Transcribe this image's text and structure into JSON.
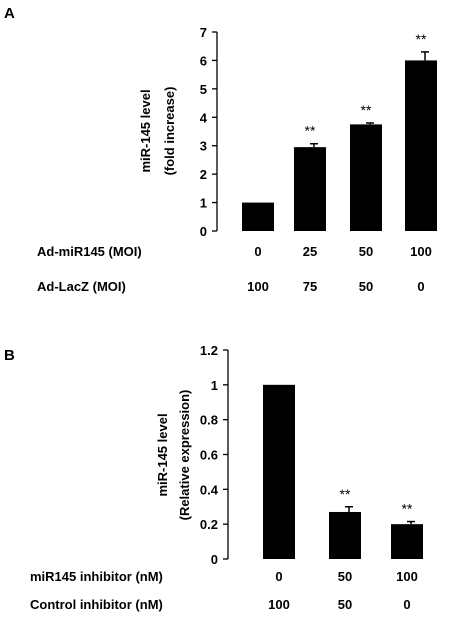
{
  "chart_data": [
    {
      "panel_label": "A",
      "type": "bar",
      "ylabel_line1": "miR-145 level",
      "ylabel_line2": "(fold increase)",
      "ylim": [
        0,
        7
      ],
      "yticks": [
        "0",
        "1",
        "2",
        "3",
        "4",
        "5",
        "6",
        "7"
      ],
      "values": [
        1.0,
        2.95,
        3.75,
        6.0
      ],
      "errors": [
        0,
        0.12,
        0.05,
        0.3
      ],
      "significance": [
        "",
        "**",
        "**",
        "**"
      ],
      "row_labels": [
        {
          "label": "Ad-miR145 (MOI)",
          "values": [
            "0",
            "25",
            "50",
            "100"
          ]
        },
        {
          "label": "Ad-LacZ (MOI)",
          "values": [
            "100",
            "75",
            "50",
            "0"
          ]
        }
      ],
      "grid": false,
      "bar_color": "#000000"
    },
    {
      "panel_label": "B",
      "type": "bar",
      "ylabel_line1": "miR-145 level",
      "ylabel_line2": "(Relative expression)",
      "ylim": [
        0,
        1.2
      ],
      "yticks": [
        "0",
        "0.2",
        "0.4",
        "0.6",
        "0.8",
        "1",
        "1.2"
      ],
      "values": [
        1.0,
        0.27,
        0.2
      ],
      "errors": [
        0,
        0.03,
        0.015
      ],
      "significance": [
        "",
        "**",
        "**"
      ],
      "row_labels": [
        {
          "label": "miR145 inhibitor (nM)",
          "values": [
            "0",
            "50",
            "100"
          ]
        },
        {
          "label": "Control inhibitor (nM)",
          "values": [
            "100",
            "50",
            "0"
          ]
        }
      ],
      "grid": false,
      "bar_color": "#000000"
    }
  ]
}
